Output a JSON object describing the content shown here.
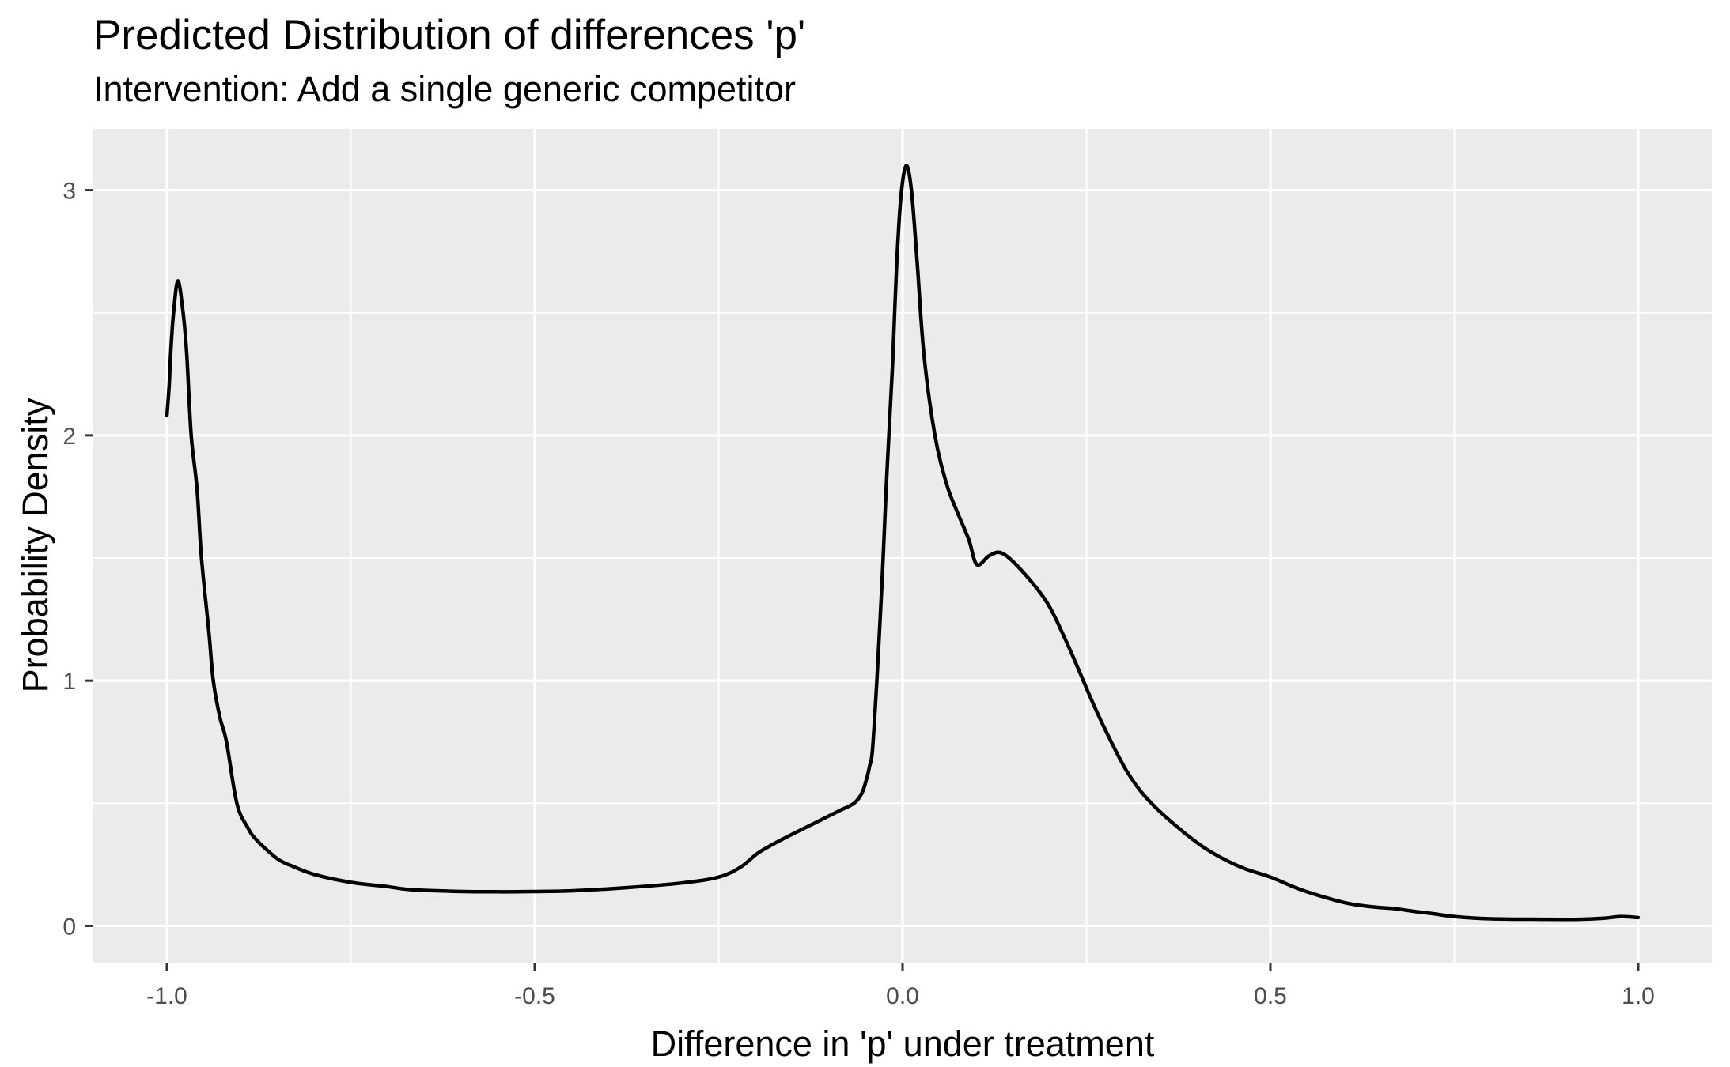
{
  "chart_data": {
    "type": "line",
    "title": "Predicted Distribution of differences 'p'",
    "subtitle": "Intervention: Add a single generic competitor",
    "xlabel": "Difference in 'p' under treatment",
    "ylabel": "Probability Density",
    "xlim": [
      -1.1,
      1.1
    ],
    "ylim": [
      -0.15,
      3.25
    ],
    "grid": "on",
    "legend": "none",
    "panel_theme": "ggplot-grey",
    "x_ticks": [
      {
        "v": -1.0,
        "label": "-1.0"
      },
      {
        "v": -0.5,
        "label": "-0.5"
      },
      {
        "v": 0.0,
        "label": "0.0"
      },
      {
        "v": 0.5,
        "label": "0.5"
      },
      {
        "v": 1.0,
        "label": "1.0"
      }
    ],
    "y_ticks": [
      {
        "v": 0,
        "label": "0"
      },
      {
        "v": 1,
        "label": "1"
      },
      {
        "v": 2,
        "label": "2"
      },
      {
        "v": 3,
        "label": "3"
      }
    ],
    "x_minor": [
      -0.75,
      -0.25,
      0.25,
      0.75
    ],
    "y_minor": [
      0.5,
      1.5,
      2.5
    ],
    "colors": {
      "panel_bg": "#EBEBEB",
      "grid": "#FFFFFF",
      "line": "#000000",
      "tick_mark": "#333333",
      "tick_text": "#4D4D4D",
      "title_text": "#000000"
    },
    "series": [
      {
        "name": "density",
        "points": [
          [
            -1.0,
            2.08
          ],
          [
            -0.997,
            2.2
          ],
          [
            -0.995,
            2.33
          ],
          [
            -0.991,
            2.5
          ],
          [
            -0.985,
            2.63
          ],
          [
            -0.978,
            2.5
          ],
          [
            -0.973,
            2.33
          ],
          [
            -0.967,
            2.0
          ],
          [
            -0.959,
            1.78
          ],
          [
            -0.953,
            1.5
          ],
          [
            -0.943,
            1.2
          ],
          [
            -0.937,
            1.0
          ],
          [
            -0.928,
            0.85
          ],
          [
            -0.919,
            0.75
          ],
          [
            -0.905,
            0.5
          ],
          [
            -0.89,
            0.4
          ],
          [
            -0.878,
            0.35
          ],
          [
            -0.85,
            0.274
          ],
          [
            -0.828,
            0.242
          ],
          [
            -0.8,
            0.21
          ],
          [
            -0.749,
            0.177
          ],
          [
            -0.7,
            0.16
          ],
          [
            -0.67,
            0.148
          ],
          [
            -0.61,
            0.141
          ],
          [
            -0.55,
            0.139
          ],
          [
            -0.5,
            0.14
          ],
          [
            -0.45,
            0.143
          ],
          [
            -0.374,
            0.156
          ],
          [
            -0.3,
            0.175
          ],
          [
            -0.25,
            0.199
          ],
          [
            -0.22,
            0.24
          ],
          [
            -0.195,
            0.3
          ],
          [
            -0.159,
            0.36
          ],
          [
            -0.123,
            0.414
          ],
          [
            -0.087,
            0.468
          ],
          [
            -0.066,
            0.5
          ],
          [
            -0.055,
            0.543
          ],
          [
            -0.048,
            0.61
          ],
          [
            -0.045,
            0.65
          ],
          [
            -0.041,
            0.715
          ],
          [
            -0.035,
            1.0
          ],
          [
            -0.028,
            1.4
          ],
          [
            -0.022,
            1.8
          ],
          [
            -0.016,
            2.15
          ],
          [
            -0.013,
            2.33
          ],
          [
            -0.008,
            2.7
          ],
          [
            -0.002,
            2.98
          ],
          [
            0.005,
            3.1
          ],
          [
            0.012,
            3.0
          ],
          [
            0.02,
            2.7
          ],
          [
            0.029,
            2.33
          ],
          [
            0.044,
            2.0
          ],
          [
            0.06,
            1.8
          ],
          [
            0.074,
            1.69
          ],
          [
            0.09,
            1.575
          ],
          [
            0.101,
            1.473
          ],
          [
            0.118,
            1.51
          ],
          [
            0.135,
            1.52
          ],
          [
            0.16,
            1.455
          ],
          [
            0.196,
            1.32
          ],
          [
            0.221,
            1.17
          ],
          [
            0.24,
            1.04
          ],
          [
            0.26,
            0.9
          ],
          [
            0.282,
            0.76
          ],
          [
            0.305,
            0.63
          ],
          [
            0.329,
            0.53
          ],
          [
            0.365,
            0.425
          ],
          [
            0.411,
            0.317
          ],
          [
            0.458,
            0.242
          ],
          [
            0.5,
            0.199
          ],
          [
            0.544,
            0.145
          ],
          [
            0.598,
            0.097
          ],
          [
            0.634,
            0.079
          ],
          [
            0.67,
            0.07
          ],
          [
            0.691,
            0.061
          ],
          [
            0.72,
            0.05
          ],
          [
            0.751,
            0.038
          ],
          [
            0.8,
            0.029
          ],
          [
            0.87,
            0.027
          ],
          [
            0.92,
            0.027
          ],
          [
            0.953,
            0.031
          ],
          [
            0.975,
            0.038
          ],
          [
            1.0,
            0.034
          ]
        ]
      }
    ]
  }
}
